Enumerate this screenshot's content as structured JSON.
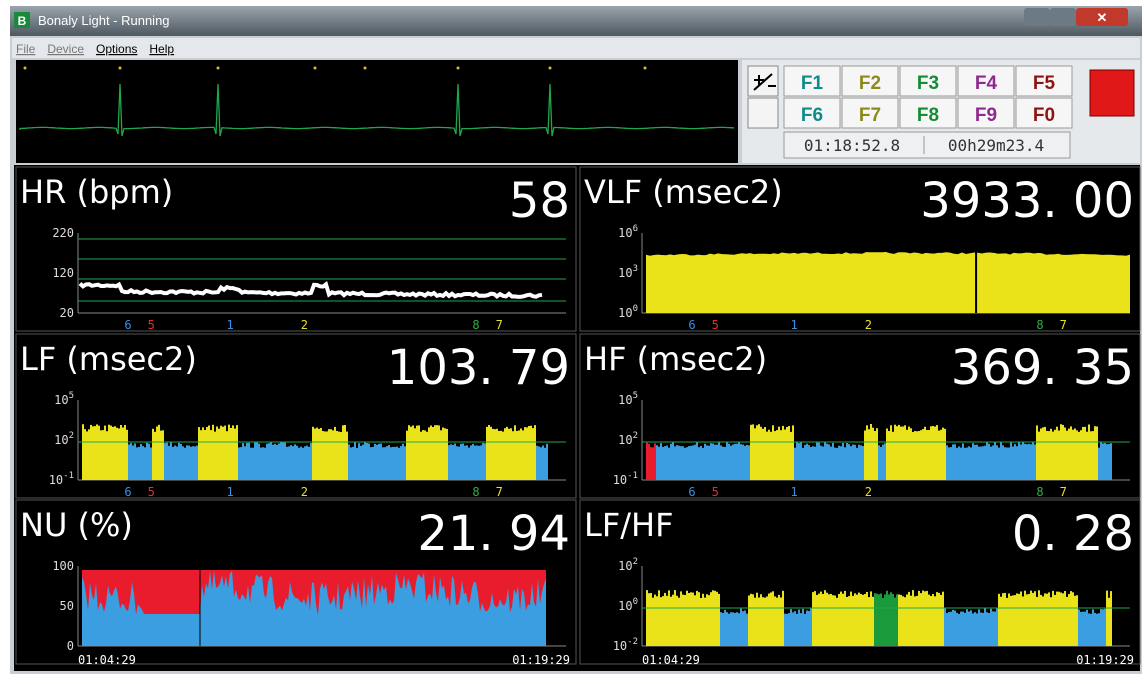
{
  "window": {
    "title": "Bonaly Light - Running",
    "menu": [
      "File",
      "Device",
      "Options",
      "Help"
    ]
  },
  "function_keys": [
    {
      "label": "F1",
      "color": "#0e8c8c"
    },
    {
      "label": "F2",
      "color": "#8c8a1e"
    },
    {
      "label": "F3",
      "color": "#138c35"
    },
    {
      "label": "F4",
      "color": "#8e2a8e"
    },
    {
      "label": "F5",
      "color": "#8e1414"
    },
    {
      "label": "F6",
      "color": "#0e8c8c"
    },
    {
      "label": "F7",
      "color": "#8c8a1e"
    },
    {
      "label": "F8",
      "color": "#138c35"
    },
    {
      "label": "F9",
      "color": "#8e2a8e"
    },
    {
      "label": "F0",
      "color": "#8e1414"
    }
  ],
  "clock": "01:18:52.8",
  "elapsed": "00h29m23.4",
  "panels": [
    {
      "title": "HR (bpm)",
      "value": "58",
      "ticks": [
        "220",
        "120",
        "20"
      ],
      "markers": [
        {
          "label": "6",
          "color": "#3a8fe0"
        },
        {
          "label": "5",
          "color": "#e03030"
        },
        {
          "label": "1",
          "color": "#3a8fe0"
        },
        {
          "label": "2",
          "color": "#e8e030"
        },
        {
          "label": "8",
          "color": "#30b040"
        },
        {
          "label": "7",
          "color": "#e8e030"
        }
      ]
    },
    {
      "title": "VLF (msec2)",
      "value": "3933. 00",
      "ticks": [
        {
          "base": "10",
          "exp": "6"
        },
        {
          "base": "10",
          "exp": "3"
        },
        {
          "base": "10",
          "exp": "0"
        }
      ],
      "markers": [
        {
          "label": "6",
          "color": "#3a8fe0"
        },
        {
          "label": "5",
          "color": "#e03030"
        },
        {
          "label": "1",
          "color": "#3a8fe0"
        },
        {
          "label": "2",
          "color": "#e8e030"
        },
        {
          "label": "8",
          "color": "#30b040"
        },
        {
          "label": "7",
          "color": "#e8e030"
        }
      ]
    },
    {
      "title": "LF (msec2)",
      "value": "103. 79",
      "ticks": [
        {
          "base": "10",
          "exp": "5"
        },
        {
          "base": "10",
          "exp": "2"
        },
        {
          "base": "10",
          "exp": "-1"
        }
      ],
      "markers": [
        {
          "label": "6",
          "color": "#3a8fe0"
        },
        {
          "label": "5",
          "color": "#e03030"
        },
        {
          "label": "1",
          "color": "#3a8fe0"
        },
        {
          "label": "2",
          "color": "#e8e030"
        },
        {
          "label": "8",
          "color": "#30b040"
        },
        {
          "label": "7",
          "color": "#e8e030"
        }
      ]
    },
    {
      "title": "HF (msec2)",
      "value": "369. 35",
      "ticks": [
        {
          "base": "10",
          "exp": "5"
        },
        {
          "base": "10",
          "exp": "2"
        },
        {
          "base": "10",
          "exp": "-1"
        }
      ],
      "markers": [
        {
          "label": "6",
          "color": "#3a8fe0"
        },
        {
          "label": "5",
          "color": "#e03030"
        },
        {
          "label": "1",
          "color": "#3a8fe0"
        },
        {
          "label": "2",
          "color": "#e8e030"
        },
        {
          "label": "8",
          "color": "#30b040"
        },
        {
          "label": "7",
          "color": "#e8e030"
        }
      ]
    },
    {
      "title": "NU (%)",
      "value": "21. 94",
      "ticks": [
        "100",
        "50",
        "0"
      ],
      "times": [
        "01:04:29",
        "01:19:29"
      ]
    },
    {
      "title": "LF/HF",
      "value": "0. 28",
      "ticks": [
        {
          "base": "10",
          "exp": "2"
        },
        {
          "base": "10",
          "exp": "0"
        },
        {
          "base": "10",
          "exp": "-2"
        }
      ],
      "times": [
        "01:04:29",
        "01:19:29"
      ]
    }
  ]
}
